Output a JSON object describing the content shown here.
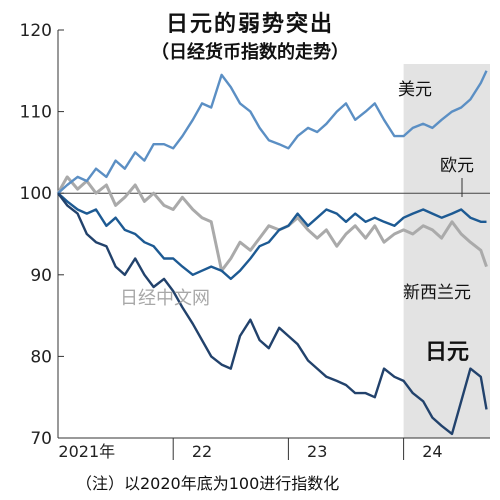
{
  "chart_data": {
    "type": "line",
    "title": "日元的弱势突出",
    "subtitle": "（日经货币指数的走势）",
    "note": "（注）以2020年底为100进行指数化",
    "watermark": "日经中文网",
    "ylim": [
      70,
      120
    ],
    "yticks": [
      70,
      80,
      90,
      100,
      110,
      120
    ],
    "xticks": [
      {
        "label": "2021年",
        "pos": 2021.25
      },
      {
        "label": "22",
        "pos": 2022.25
      },
      {
        "label": "23",
        "pos": 2023.25
      },
      {
        "label": "24",
        "pos": 2024.25
      }
    ],
    "xlim": [
      2021.0,
      2024.75
    ],
    "shade_from": 2024.0,
    "reference_line": 100,
    "colors": {
      "usd": "#5b8fc4",
      "eur": "#1d5a93",
      "nzd": "#aaaaaa",
      "jpy": "#22426c",
      "shade": "#e3e3e3"
    },
    "series": [
      {
        "name": "美元",
        "key": "usd",
        "x": [
          2021.0,
          2021.08,
          2021.17,
          2021.25,
          2021.33,
          2021.42,
          2021.5,
          2021.58,
          2021.67,
          2021.75,
          2021.83,
          2021.92,
          2022.0,
          2022.08,
          2022.17,
          2022.25,
          2022.33,
          2022.42,
          2022.5,
          2022.58,
          2022.67,
          2022.75,
          2022.83,
          2022.92,
          2023.0,
          2023.08,
          2023.17,
          2023.25,
          2023.33,
          2023.42,
          2023.5,
          2023.58,
          2023.67,
          2023.75,
          2023.83,
          2023.92,
          2024.0,
          2024.08,
          2024.17,
          2024.25,
          2024.33,
          2024.42,
          2024.5,
          2024.58,
          2024.67,
          2024.72
        ],
        "values": [
          100,
          101,
          102,
          101.5,
          103,
          102,
          104,
          103,
          105,
          104,
          106,
          106,
          105.5,
          107,
          109,
          111,
          110.5,
          114.5,
          113,
          111,
          110,
          108,
          106.5,
          106,
          105.5,
          107,
          108,
          107.5,
          108.5,
          110,
          111,
          109,
          110,
          111,
          109,
          107,
          107,
          108,
          108.5,
          108,
          109,
          110,
          110.5,
          111.5,
          113.5,
          115
        ]
      },
      {
        "name": "欧元",
        "key": "eur",
        "x": [
          2021.0,
          2021.08,
          2021.17,
          2021.25,
          2021.33,
          2021.42,
          2021.5,
          2021.58,
          2021.67,
          2021.75,
          2021.83,
          2021.92,
          2022.0,
          2022.08,
          2022.17,
          2022.25,
          2022.33,
          2022.42,
          2022.5,
          2022.58,
          2022.67,
          2022.75,
          2022.83,
          2022.92,
          2023.0,
          2023.08,
          2023.17,
          2023.25,
          2023.33,
          2023.42,
          2023.5,
          2023.58,
          2023.67,
          2023.75,
          2023.83,
          2023.92,
          2024.0,
          2024.08,
          2024.17,
          2024.25,
          2024.33,
          2024.42,
          2024.5,
          2024.58,
          2024.67,
          2024.72
        ],
        "values": [
          100,
          99,
          98,
          97.5,
          98,
          96,
          97,
          95.5,
          95,
          94,
          93.5,
          92,
          92,
          91,
          90,
          90.5,
          91,
          90.5,
          89.5,
          90.5,
          92,
          93.5,
          94,
          95.5,
          96,
          97.5,
          96,
          97,
          98,
          97.5,
          96.5,
          97.5,
          96.5,
          97,
          96.5,
          96,
          97,
          97.5,
          98,
          97.5,
          97,
          97.5,
          98,
          97,
          96.5,
          96.5
        ]
      },
      {
        "name": "新西兰元",
        "key": "nzd",
        "x": [
          2021.0,
          2021.08,
          2021.17,
          2021.25,
          2021.33,
          2021.42,
          2021.5,
          2021.58,
          2021.67,
          2021.75,
          2021.83,
          2021.92,
          2022.0,
          2022.08,
          2022.17,
          2022.25,
          2022.33,
          2022.42,
          2022.5,
          2022.58,
          2022.67,
          2022.75,
          2022.83,
          2022.92,
          2023.0,
          2023.08,
          2023.17,
          2023.25,
          2023.33,
          2023.42,
          2023.5,
          2023.58,
          2023.67,
          2023.75,
          2023.83,
          2023.92,
          2024.0,
          2024.08,
          2024.17,
          2024.25,
          2024.33,
          2024.42,
          2024.5,
          2024.58,
          2024.67,
          2024.72
        ],
        "values": [
          100,
          102,
          100.5,
          101.5,
          100,
          101,
          98.5,
          99.5,
          101,
          99,
          100,
          98.5,
          98,
          99.5,
          98,
          97,
          96.5,
          90.5,
          92,
          94,
          93,
          94.5,
          96,
          95.5,
          96,
          97,
          95.5,
          94.5,
          95.5,
          93.5,
          95,
          96,
          94.5,
          96,
          94,
          95,
          95.5,
          95,
          96,
          95.5,
          94.5,
          96.5,
          95,
          94,
          93,
          91
        ]
      },
      {
        "name": "日元",
        "key": "jpy",
        "x": [
          2021.0,
          2021.08,
          2021.17,
          2021.25,
          2021.33,
          2021.42,
          2021.5,
          2021.58,
          2021.67,
          2021.75,
          2021.83,
          2021.92,
          2022.0,
          2022.08,
          2022.17,
          2022.25,
          2022.33,
          2022.42,
          2022.5,
          2022.58,
          2022.67,
          2022.75,
          2022.83,
          2022.92,
          2023.0,
          2023.08,
          2023.17,
          2023.25,
          2023.33,
          2023.42,
          2023.5,
          2023.58,
          2023.67,
          2023.75,
          2023.83,
          2023.92,
          2024.0,
          2024.08,
          2024.17,
          2024.25,
          2024.33,
          2024.42,
          2024.5,
          2024.58,
          2024.67,
          2024.72
        ],
        "values": [
          100,
          98.5,
          97.5,
          95,
          94,
          93.5,
          91,
          90,
          92,
          90,
          88.5,
          89.5,
          88,
          86,
          84,
          82,
          80,
          79,
          78.5,
          82.5,
          84.5,
          82,
          81,
          83.5,
          82.5,
          81.5,
          79.5,
          78.5,
          77.5,
          77,
          76.5,
          75.5,
          75.5,
          75,
          78.5,
          77.5,
          77,
          75.5,
          74.5,
          72.5,
          71.5,
          70.5,
          74.5,
          78.5,
          77.5,
          73.5
        ]
      }
    ],
    "labels": {
      "usd": "美元",
      "eur": "欧元",
      "nzd": "新西兰元",
      "jpy": "日元"
    }
  }
}
